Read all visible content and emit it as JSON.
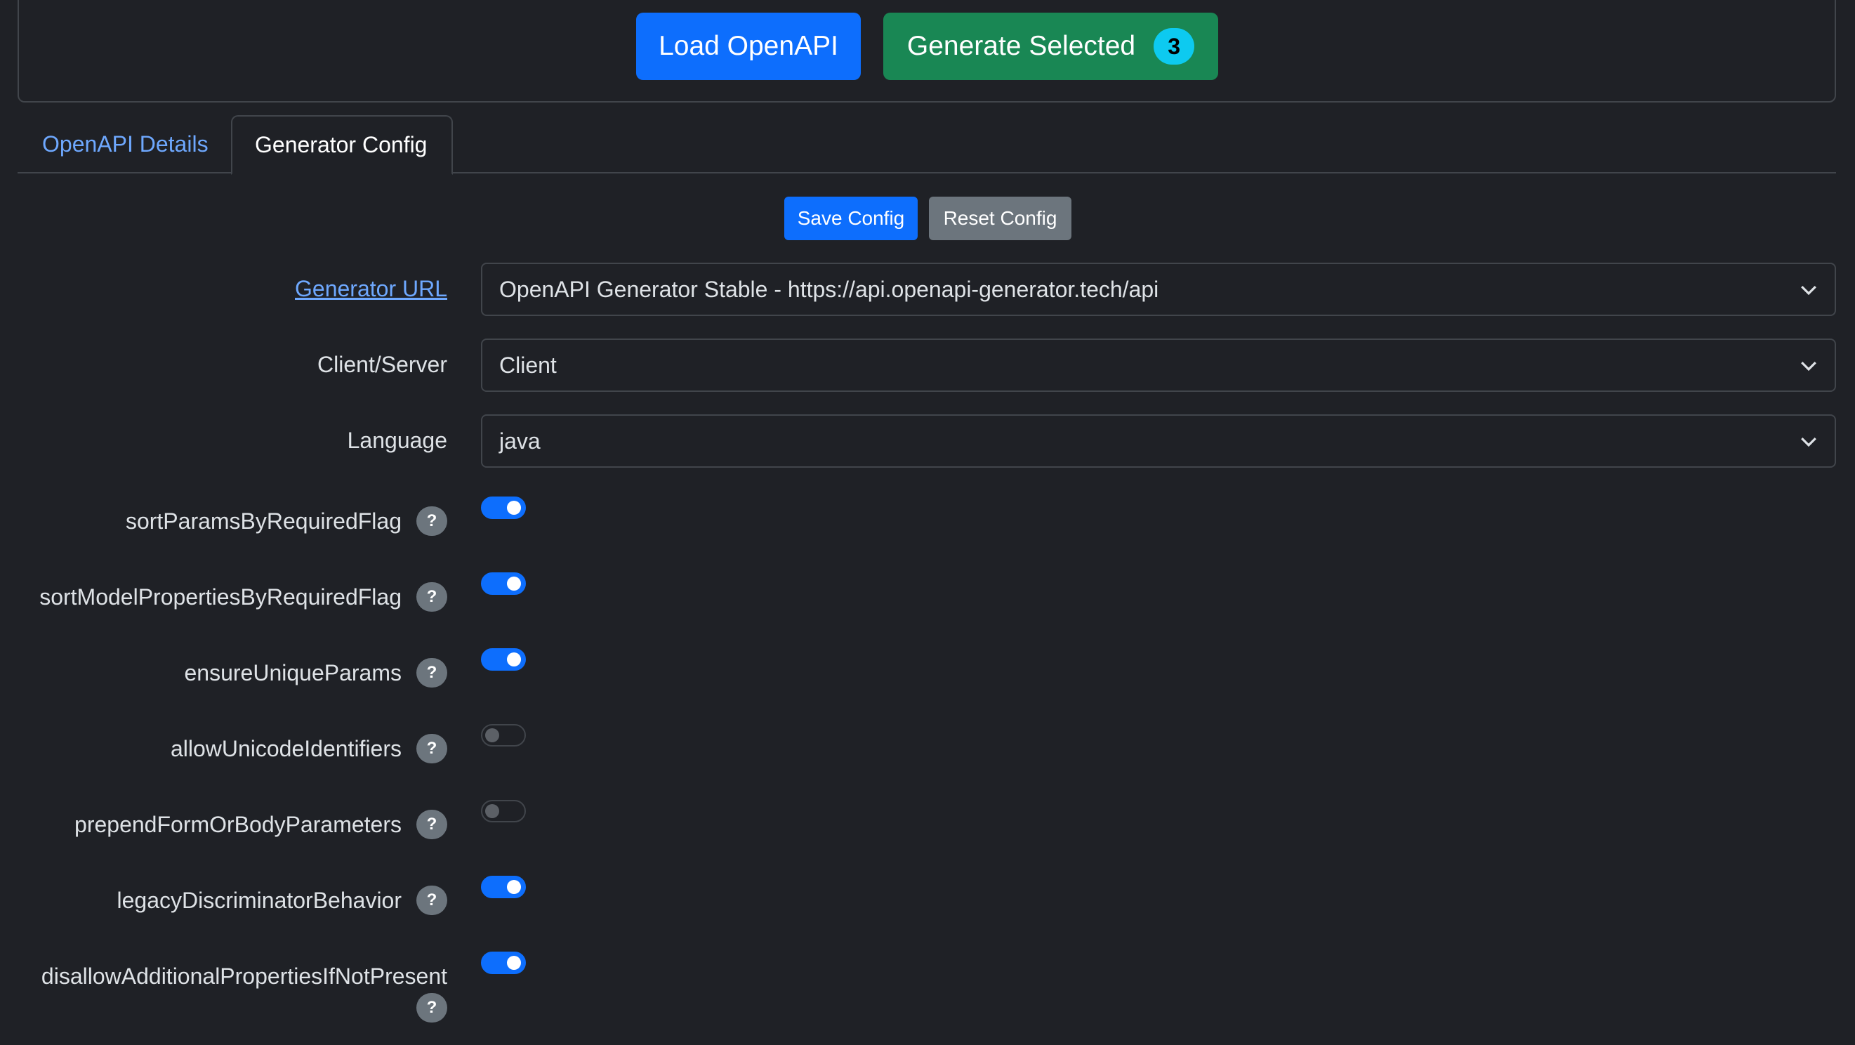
{
  "header": {
    "load_button": "Load OpenAPI",
    "generate_button": "Generate Selected",
    "selected_count": "3"
  },
  "tabs": [
    {
      "label": "OpenAPI Details",
      "active": false
    },
    {
      "label": "Generator Config",
      "active": true
    }
  ],
  "config_actions": {
    "save": "Save Config",
    "reset": "Reset Config"
  },
  "fields": {
    "generator_url": {
      "label": "Generator URL",
      "value": "OpenAPI Generator Stable - https://api.openapi-generator.tech/api"
    },
    "client_server": {
      "label": "Client/Server",
      "value": "Client"
    },
    "language": {
      "label": "Language",
      "value": "java"
    }
  },
  "options": [
    {
      "name": "sortParamsByRequiredFlag",
      "enabled": true
    },
    {
      "name": "sortModelPropertiesByRequiredFlag",
      "enabled": true
    },
    {
      "name": "ensureUniqueParams",
      "enabled": true
    },
    {
      "name": "allowUnicodeIdentifiers",
      "enabled": false
    },
    {
      "name": "prependFormOrBodyParameters",
      "enabled": false
    },
    {
      "name": "legacyDiscriminatorBehavior",
      "enabled": true
    },
    {
      "name": "disallowAdditionalPropertiesIfNotPresent",
      "enabled": true
    }
  ],
  "help_glyph": "?",
  "colors": {
    "primary": "#0d6efd",
    "success": "#198754",
    "secondary": "#6c757d",
    "badge": "#0dcaf0",
    "link": "#6ea8fe",
    "background": "#1f2126"
  }
}
